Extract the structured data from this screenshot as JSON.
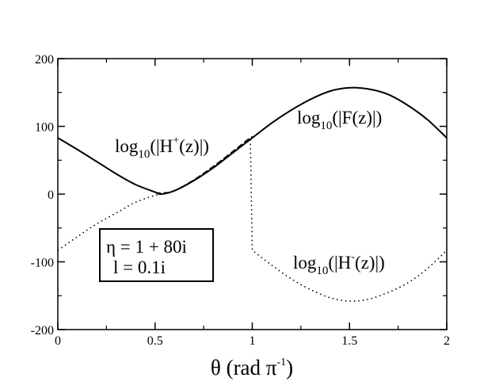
{
  "chart_data": {
    "type": "line",
    "xlabel_main": "θ (rad π",
    "xlabel_sup": "-1",
    "xlabel_end": ")",
    "xlim": [
      0,
      2
    ],
    "ylim": [
      -200,
      200
    ],
    "x_ticks": [
      "0",
      "0.5",
      "1",
      "1.5",
      "2"
    ],
    "y_ticks": [
      "-200",
      "-100",
      "0",
      "100",
      "200"
    ],
    "series": [
      {
        "name": "log10(|F(z)|)",
        "style": "solid",
        "x": [
          0,
          0.1,
          0.2,
          0.3,
          0.4,
          0.5,
          0.53,
          0.6,
          0.7,
          0.8,
          0.9,
          1.0,
          1.1,
          1.2,
          1.3,
          1.4,
          1.5,
          1.6,
          1.7,
          1.8,
          1.9,
          2.0
        ],
        "y": [
          83,
          66,
          48,
          30,
          14,
          3,
          0,
          5,
          20,
          39,
          61,
          83,
          105,
          124,
          140,
          152,
          157,
          155,
          147,
          131,
          110,
          83
        ]
      },
      {
        "name": "log10(|H+(z)|)",
        "style": "dashed",
        "x": [
          0.5,
          0.55,
          0.6,
          0.7,
          0.8,
          0.9,
          0.97,
          1.0
        ],
        "y": [
          2,
          2,
          5,
          21,
          41,
          63,
          79,
          85
        ]
      },
      {
        "name": "log10(|H-(z)|)",
        "style": "dotted",
        "x": [
          0,
          0.1,
          0.2,
          0.3,
          0.4,
          0.5,
          0.55,
          0.6,
          0.7,
          0.8,
          0.9,
          0.99,
          1.0,
          1.1,
          1.2,
          1.3,
          1.4,
          1.5,
          1.6,
          1.7,
          1.8,
          1.9,
          2.0
        ],
        "y": [
          -83,
          -63,
          -44,
          -28,
          -12,
          -2,
          1,
          5,
          21,
          41,
          63,
          83,
          -83,
          -105,
          -125,
          -141,
          -153,
          -158,
          -155,
          -145,
          -131,
          -110,
          -83
        ]
      }
    ],
    "annotations": {
      "hplus": {
        "pre": "log",
        "sub": "10",
        "mid": "(|H",
        "sup": "+",
        "post": "(z)|)"
      },
      "f": {
        "pre": "log",
        "sub": "10",
        "post": "(|F(z)|)"
      },
      "hminus": {
        "pre": "log",
        "sub": "10",
        "mid": "(|H",
        "sup": "-",
        "post": "(z)|)"
      }
    },
    "legend_box": {
      "line1": "η = 1 + 80i",
      "line2": "l = 0.1i"
    }
  }
}
